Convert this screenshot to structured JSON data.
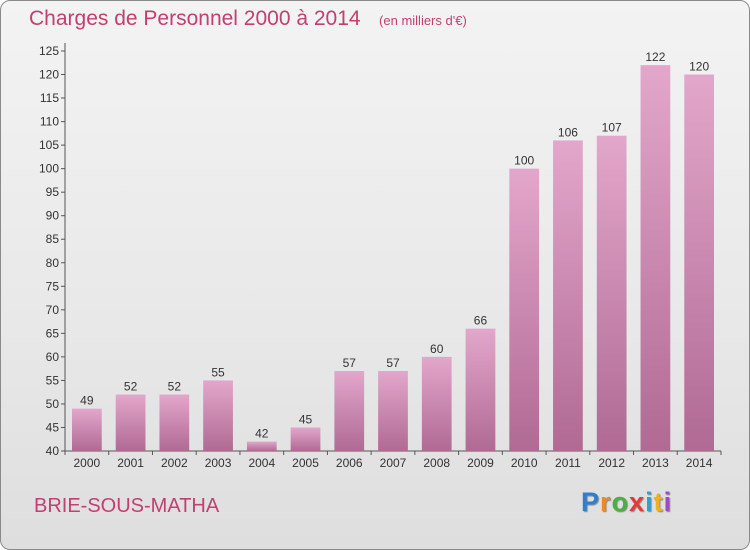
{
  "chart_data": {
    "type": "bar",
    "title": "Charges de Personnel 2000 à 2014",
    "unit_note": "(en milliers d'€)",
    "categories": [
      "2000",
      "2001",
      "2002",
      "2003",
      "2004",
      "2005",
      "2006",
      "2007",
      "2008",
      "2009",
      "2010",
      "2011",
      "2012",
      "2013",
      "2014"
    ],
    "values": [
      49,
      52,
      52,
      55,
      42,
      45,
      57,
      57,
      60,
      66,
      100,
      106,
      107,
      122,
      120
    ],
    "ylim": [
      40,
      125
    ],
    "yticks": [
      40,
      45,
      50,
      55,
      60,
      65,
      70,
      75,
      80,
      85,
      90,
      95,
      100,
      105,
      110,
      115,
      120,
      125
    ],
    "grid": false,
    "bar_color_top": "#e3a7cb",
    "bar_color_bottom": "#b06a94"
  },
  "commune_name": "BRIE-SOUS-MATHA",
  "brand": {
    "letters": [
      "P",
      "r",
      "o",
      "x",
      "i",
      "t",
      "i"
    ],
    "colors": [
      "#2f7fd0",
      "#f08a1c",
      "#4ab040",
      "#e23a3a",
      "#2f9fd8",
      "#f0b020",
      "#9a4fbf"
    ]
  }
}
